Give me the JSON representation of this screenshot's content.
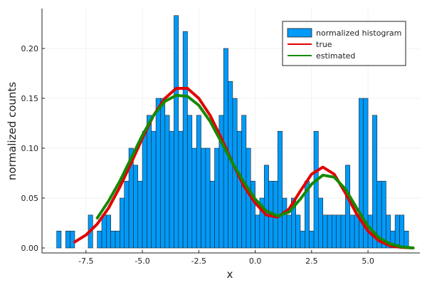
{
  "chart_data": {
    "type": "bar",
    "xlabel": "x",
    "ylabel": "normalized counts",
    "xlim": [
      -9.45,
      7.3
    ],
    "ylim": [
      -0.005,
      0.24
    ],
    "x_ticks": [
      -7.5,
      -5.0,
      -2.5,
      0.0,
      2.5,
      5.0
    ],
    "x_tick_labels": [
      "-7.5",
      "-5.0",
      "-2.5",
      "0.0",
      "2.5",
      "5.0"
    ],
    "y_ticks": [
      0.0,
      0.05,
      0.1,
      0.15,
      0.2
    ],
    "y_tick_labels": [
      "0.00",
      "0.05",
      "0.10",
      "0.15",
      "0.20"
    ],
    "grid": true,
    "legend_position": "top-right",
    "histogram": {
      "name": "normalized histogram",
      "color": "#009af9",
      "bin_start": -8.8,
      "bin_width": 0.2,
      "values": [
        0.017,
        0,
        0.017,
        0.017,
        0,
        0,
        0,
        0.033,
        0,
        0.017,
        0.033,
        0.033,
        0.017,
        0.017,
        0.05,
        0.067,
        0.1,
        0.083,
        0.067,
        0.117,
        0.133,
        0.117,
        0.15,
        0.15,
        0.133,
        0.117,
        0.233,
        0.117,
        0.217,
        0.133,
        0.1,
        0.133,
        0.1,
        0.1,
        0.067,
        0.1,
        0.133,
        0.2,
        0.167,
        0.15,
        0.117,
        0.133,
        0.1,
        0.067,
        0.033,
        0.05,
        0.083,
        0.067,
        0.067,
        0.117,
        0.05,
        0.033,
        0.05,
        0.033,
        0.017,
        0.067,
        0.017,
        0.117,
        0.05,
        0.033,
        0.033,
        0.033,
        0.033,
        0.033,
        0.083,
        0.033,
        0.033,
        0.15,
        0.15,
        0.033,
        0.133,
        0.067,
        0.067,
        0.033,
        0.017,
        0.033,
        0.033,
        0.017
      ]
    },
    "series": [
      {
        "name": "true",
        "color": "#e00000",
        "x": [
          -8.0,
          -7.5,
          -7.0,
          -6.5,
          -6.0,
          -5.5,
          -5.0,
          -4.5,
          -4.0,
          -3.5,
          -3.0,
          -2.5,
          -2.0,
          -1.5,
          -1.0,
          -0.5,
          0.0,
          0.5,
          1.0,
          1.5,
          2.0,
          2.5,
          3.0,
          3.5,
          4.0,
          4.5,
          5.0,
          5.5,
          6.0,
          6.5,
          7.0
        ],
        "values": [
          0.006,
          0.013,
          0.024,
          0.04,
          0.061,
          0.085,
          0.11,
          0.133,
          0.15,
          0.16,
          0.16,
          0.15,
          0.133,
          0.11,
          0.085,
          0.062,
          0.045,
          0.033,
          0.031,
          0.039,
          0.057,
          0.074,
          0.081,
          0.074,
          0.055,
          0.034,
          0.017,
          0.007,
          0.002,
          0.0005,
          0.0
        ]
      },
      {
        "name": "estimated",
        "color": "#158a00",
        "x": [
          -7.0,
          -6.5,
          -6.0,
          -5.5,
          -5.0,
          -4.5,
          -4.0,
          -3.5,
          -3.0,
          -2.5,
          -2.0,
          -1.5,
          -1.0,
          -0.5,
          0.0,
          0.5,
          1.0,
          1.5,
          2.0,
          2.5,
          3.0,
          3.5,
          4.0,
          4.5,
          5.0,
          5.5,
          6.0,
          6.5,
          7.0
        ],
        "values": [
          0.03,
          0.047,
          0.067,
          0.09,
          0.113,
          0.133,
          0.147,
          0.153,
          0.152,
          0.143,
          0.127,
          0.106,
          0.085,
          0.066,
          0.049,
          0.037,
          0.032,
          0.036,
          0.049,
          0.064,
          0.073,
          0.071,
          0.059,
          0.04,
          0.022,
          0.01,
          0.004,
          0.001,
          0.0
        ]
      }
    ]
  }
}
